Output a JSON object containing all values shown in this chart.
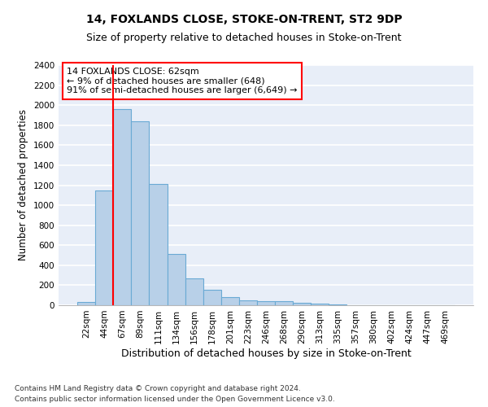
{
  "title": "14, FOXLANDS CLOSE, STOKE-ON-TRENT, ST2 9DP",
  "subtitle": "Size of property relative to detached houses in Stoke-on-Trent",
  "xlabel": "Distribution of detached houses by size in Stoke-on-Trent",
  "ylabel": "Number of detached properties",
  "categories": [
    "22sqm",
    "44sqm",
    "67sqm",
    "89sqm",
    "111sqm",
    "134sqm",
    "156sqm",
    "178sqm",
    "201sqm",
    "223sqm",
    "246sqm",
    "268sqm",
    "290sqm",
    "313sqm",
    "335sqm",
    "357sqm",
    "380sqm",
    "402sqm",
    "424sqm",
    "447sqm",
    "469sqm"
  ],
  "values": [
    30,
    1150,
    1960,
    1840,
    1215,
    515,
    265,
    158,
    82,
    50,
    42,
    42,
    22,
    18,
    8,
    3,
    3,
    3,
    2,
    2,
    2
  ],
  "bar_color": "#b8d0e8",
  "bar_edge_color": "#6aaad4",
  "vline_color": "red",
  "annotation_text": "14 FOXLANDS CLOSE: 62sqm\n← 9% of detached houses are smaller (648)\n91% of semi-detached houses are larger (6,649) →",
  "annotation_box_color": "white",
  "annotation_box_edge_color": "red",
  "ylim": [
    0,
    2400
  ],
  "yticks": [
    0,
    200,
    400,
    600,
    800,
    1000,
    1200,
    1400,
    1600,
    1800,
    2000,
    2200,
    2400
  ],
  "footnote1": "Contains HM Land Registry data © Crown copyright and database right 2024.",
  "footnote2": "Contains public sector information licensed under the Open Government Licence v3.0.",
  "bg_color": "#e8eef8",
  "grid_color": "white",
  "title_fontsize": 10,
  "subtitle_fontsize": 9,
  "ylabel_fontsize": 8.5,
  "xlabel_fontsize": 9,
  "tick_fontsize": 7.5,
  "annotation_fontsize": 8,
  "footnote_fontsize": 6.5
}
